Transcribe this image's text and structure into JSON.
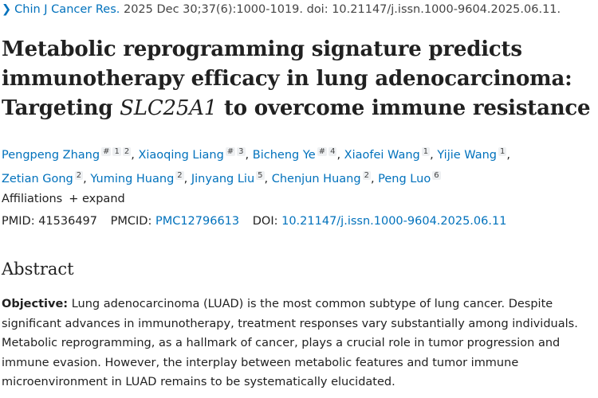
{
  "citation": {
    "journal": "Chin J Cancer Res.",
    "details": "2025 Dec 30;37(6):1000-1019. doi: 10.21147/j.issn.1000-9604.2025.06.11."
  },
  "title_pre": "Metabolic reprogramming signature predicts immunotherapy efficacy in lung adenocarcinoma: Targeting ",
  "title_gene": "SLC25A1",
  "title_post": " to overcome immune resistance",
  "authors": [
    {
      "name": "Pengpeng Zhang",
      "sups": [
        "#",
        "1",
        "2"
      ]
    },
    {
      "name": "Xiaoqing Liang",
      "sups": [
        "#",
        "3"
      ]
    },
    {
      "name": "Bicheng Ye",
      "sups": [
        "#",
        "4"
      ]
    },
    {
      "name": "Xiaofei Wang",
      "sups": [
        "1"
      ]
    },
    {
      "name": "Yijie Wang",
      "sups": [
        "1"
      ]
    },
    {
      "name": "Zetian Gong",
      "sups": [
        "2"
      ]
    },
    {
      "name": "Yuming Huang",
      "sups": [
        "2"
      ]
    },
    {
      "name": "Jinyang Liu",
      "sups": [
        "5"
      ]
    },
    {
      "name": "Chenjun Huang",
      "sups": [
        "2"
      ]
    },
    {
      "name": "Peng Luo",
      "sups": [
        "6"
      ]
    }
  ],
  "affiliations": {
    "label": "Affiliations",
    "expand": "+ expand"
  },
  "ids": {
    "pmid_label": "PMID:",
    "pmid": "41536497",
    "pmcid_label": "PMCID:",
    "pmcid": "PMC12796613",
    "doi_label": "DOI:",
    "doi": "10.21147/j.issn.1000-9604.2025.06.11"
  },
  "abstract": {
    "heading": "Abstract",
    "objective_label": "Objective:",
    "objective_text": " Lung adenocarcinoma (LUAD) is the most common subtype of lung cancer. Despite significant advances in immunotherapy, treatment responses vary substantially among individuals. Metabolic reprogramming, as a hallmark of cancer, plays a crucial role in tumor progression and immune evasion. However, the interplay between metabolic features and tumor immune microenvironment in LUAD remains to be systematically elucidated."
  }
}
